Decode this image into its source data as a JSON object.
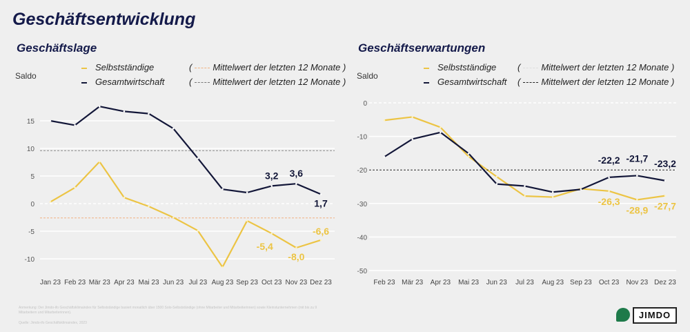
{
  "title": "Geschäftsentwicklung",
  "legend_labels": {
    "selbst": "Selbstständige",
    "gesamt": "Gesamtwirtschaft",
    "mean_open": "(",
    "mean_text": "Mittelwert der letzten 12 Monate",
    "mean_close": ")"
  },
  "colors": {
    "selbst": "#ecc444",
    "gesamt": "#121638",
    "mean_selbst": "#f0b080",
    "mean_gesamt": "#888888"
  },
  "chart_data": [
    {
      "type": "line",
      "title": "Geschäftslage",
      "ylabel": "Saldo",
      "ylim": [
        -12.5,
        18.5
      ],
      "yticks": [
        15,
        10,
        5,
        0,
        -5,
        -10
      ],
      "categories": [
        "Jan 23",
        "Feb 23",
        "Mär 23",
        "Apr 23",
        "Mai 23",
        "Jun 23",
        "Jul 23",
        "Aug 23",
        "Sep 23",
        "Oct 23",
        "Nov 23",
        "Dez 23"
      ],
      "series": [
        {
          "name": "Selbstständige",
          "values": [
            0.3,
            2.9,
            7.6,
            1.1,
            -0.5,
            -2.5,
            -4.9,
            -11.5,
            -3.1,
            -5.4,
            -8.0,
            -6.6
          ],
          "mean": -2.6,
          "labels": {
            "9": "-5,4",
            "10": "-8,0",
            "11": "-6,6"
          }
        },
        {
          "name": "Gesamtwirtschaft",
          "values": [
            15.0,
            14.2,
            17.6,
            16.7,
            16.3,
            13.6,
            8.2,
            2.6,
            2.0,
            3.2,
            3.6,
            1.7
          ],
          "mean": 9.6,
          "labels": {
            "9": "3,2",
            "10": "3,6",
            "11": "1,7"
          }
        }
      ]
    },
    {
      "type": "line",
      "title": "Geschäftserwartungen",
      "ylabel": "Saldo",
      "ylim": [
        -52,
        1
      ],
      "yticks": [
        0,
        -10,
        -20,
        -30,
        -40,
        -50
      ],
      "categories": [
        "Feb 23",
        "Mär 23",
        "Apr 23",
        "Mai 23",
        "Jun 23",
        "Jul 23",
        "Aug 23",
        "Sep 23",
        "Oct 23",
        "Nov 23",
        "Dez 23"
      ],
      "series": [
        {
          "name": "Selbstständige",
          "values": [
            -5.2,
            -4.2,
            -7.3,
            -16.0,
            -22.0,
            -27.8,
            -28.1,
            -25.6,
            -26.3,
            -28.9,
            -27.7
          ],
          "labels": {
            "8": "-26,3",
            "9": "-28,9",
            "10": "-27,7"
          }
        },
        {
          "name": "Gesamtwirtschaft",
          "values": [
            -16.1,
            -10.8,
            -8.8,
            -15.1,
            -24.2,
            -24.8,
            -26.6,
            -25.8,
            -22.2,
            -21.7,
            -23.2
          ],
          "mean": -20.0,
          "labels": {
            "8": "-22,2",
            "9": "-21,7",
            "10": "-23,2"
          }
        }
      ]
    }
  ],
  "footnote": "Anmerkung: Der Jimdo-ifo Geschäftsklimaindex für Selbstständige basiert monatlich über 1500 Solo-Selbstständige (ohne Mitarbeiter und Mitarbeiterinnen) sowie Kleinstunternehmen (mit bis zu 9 Mitarbeitern und Mitarbeiterinnen).",
  "source": "Quelle: Jimdo-ifo Geschäftsklimaindex, 2023",
  "logos": {
    "vgsd": "VGSD",
    "jimdo": "JIMDO"
  }
}
